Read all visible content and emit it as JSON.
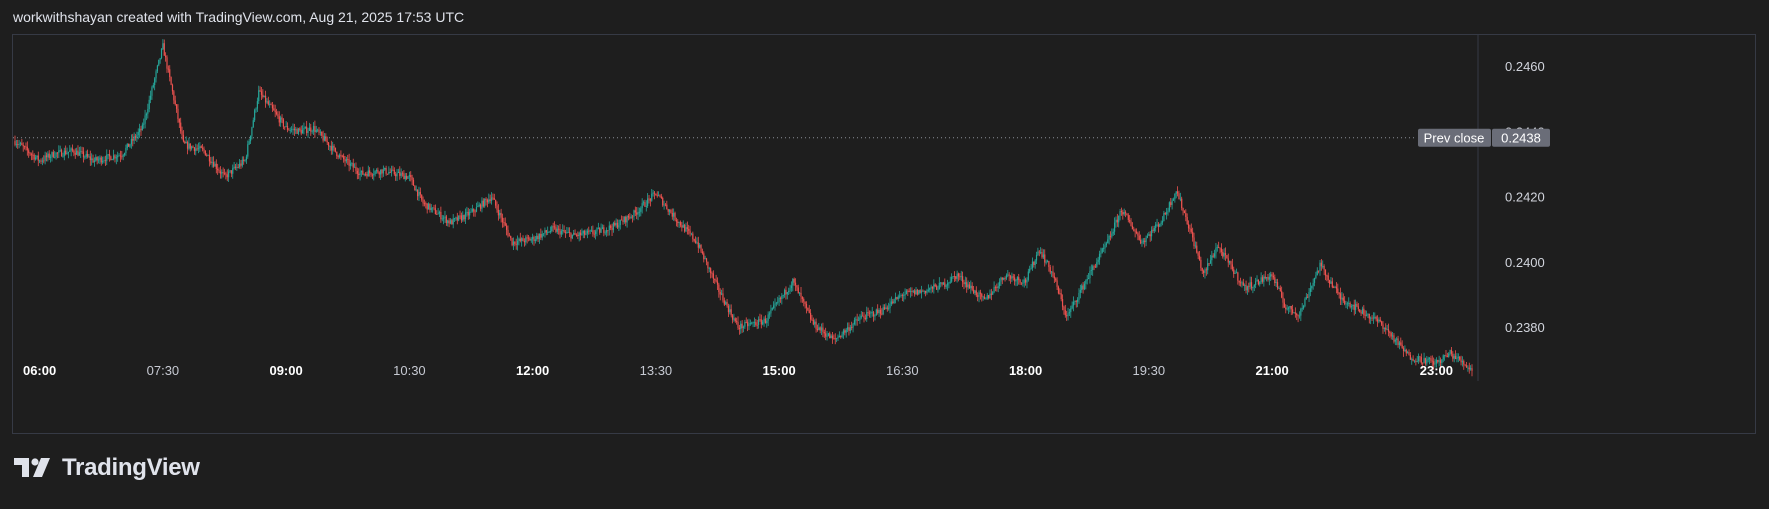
{
  "header": {
    "attribution": "workwithshayan created with TradingView.com, Aug 21, 2025 17:53 UTC"
  },
  "brand": {
    "name": "TradingView",
    "logo_icon": "tradingview-logo-icon"
  },
  "colors": {
    "up": "#26a69a",
    "down": "#ef5350",
    "background": "#1e1e1e",
    "prev_close_badge": "#6a6d78"
  },
  "chart_data": {
    "type": "candlestick",
    "interval_minutes": 1,
    "x_ticks": [
      {
        "label": "06:00",
        "bold": true
      },
      {
        "label": "07:30",
        "bold": false
      },
      {
        "label": "09:00",
        "bold": true
      },
      {
        "label": "10:30",
        "bold": false
      },
      {
        "label": "12:00",
        "bold": true
      },
      {
        "label": "13:30",
        "bold": false
      },
      {
        "label": "15:00",
        "bold": true
      },
      {
        "label": "16:30",
        "bold": false
      },
      {
        "label": "18:00",
        "bold": true
      },
      {
        "label": "19:30",
        "bold": false
      },
      {
        "label": "21:00",
        "bold": true
      },
      {
        "label": "23:00",
        "bold": true
      }
    ],
    "x_range": [
      "05:42",
      "23:26"
    ],
    "y_ticks": [
      "0.2460",
      "0.2440",
      "0.2420",
      "0.2400",
      "0.2380"
    ],
    "ylim": [
      0.23635,
      0.24695
    ],
    "prev_close": {
      "label": "Prev close",
      "value": "0.2438"
    },
    "close_path": [
      [
        "05:42",
        0.2437
      ],
      [
        "06:00",
        0.2431
      ],
      [
        "06:10",
        0.2433
      ],
      [
        "06:25",
        0.2434
      ],
      [
        "06:40",
        0.2431
      ],
      [
        "07:00",
        0.2433
      ],
      [
        "07:15",
        0.2441
      ],
      [
        "07:30",
        0.2466
      ],
      [
        "07:45",
        0.2436
      ],
      [
        "08:00",
        0.2434
      ],
      [
        "08:15",
        0.2426
      ],
      [
        "08:30",
        0.2431
      ],
      [
        "08:40",
        0.2452
      ],
      [
        "09:00",
        0.2441
      ],
      [
        "09:10",
        0.244
      ],
      [
        "09:20",
        0.2441
      ],
      [
        "09:40",
        0.2432
      ],
      [
        "09:55",
        0.2427
      ],
      [
        "10:10",
        0.2428
      ],
      [
        "10:30",
        0.2426
      ],
      [
        "10:40",
        0.2418
      ],
      [
        "11:00",
        0.2412
      ],
      [
        "11:15",
        0.2415
      ],
      [
        "11:30",
        0.242
      ],
      [
        "11:45",
        0.2406
      ],
      [
        "12:00",
        0.2407
      ],
      [
        "12:15",
        0.241
      ],
      [
        "12:30",
        0.2408
      ],
      [
        "12:45",
        0.2409
      ],
      [
        "13:00",
        0.2411
      ],
      [
        "13:15",
        0.2415
      ],
      [
        "13:30",
        0.2421
      ],
      [
        "13:45",
        0.2413
      ],
      [
        "14:00",
        0.2406
      ],
      [
        "14:15",
        0.2392
      ],
      [
        "14:30",
        0.238
      ],
      [
        "14:50",
        0.2382
      ],
      [
        "15:10",
        0.2394
      ],
      [
        "15:25",
        0.2381
      ],
      [
        "15:40",
        0.2376
      ],
      [
        "16:00",
        0.2383
      ],
      [
        "16:15",
        0.2385
      ],
      [
        "16:30",
        0.239
      ],
      [
        "16:45",
        0.2391
      ],
      [
        "17:00",
        0.2393
      ],
      [
        "17:10",
        0.2396
      ],
      [
        "17:30",
        0.2388
      ],
      [
        "17:45",
        0.2396
      ],
      [
        "18:00",
        0.2394
      ],
      [
        "18:10",
        0.2404
      ],
      [
        "18:20",
        0.2396
      ],
      [
        "18:30",
        0.2383
      ],
      [
        "18:45",
        0.2395
      ],
      [
        "19:00",
        0.2406
      ],
      [
        "19:10",
        0.2416
      ],
      [
        "19:25",
        0.2406
      ],
      [
        "19:40",
        0.2413
      ],
      [
        "19:50",
        0.2422
      ],
      [
        "20:00",
        0.241
      ],
      [
        "20:10",
        0.2396
      ],
      [
        "20:20",
        0.2405
      ],
      [
        "20:40",
        0.2392
      ],
      [
        "21:00",
        0.2396
      ],
      [
        "21:10",
        0.2386
      ],
      [
        "21:20",
        0.2384
      ],
      [
        "21:35",
        0.2399
      ],
      [
        "21:50",
        0.2389
      ],
      [
        "22:05",
        0.2385
      ],
      [
        "22:20",
        0.2381
      ],
      [
        "22:40",
        0.2371
      ],
      [
        "23:00",
        0.2369
      ],
      [
        "23:10",
        0.2372
      ],
      [
        "23:26",
        0.2367
      ]
    ]
  }
}
